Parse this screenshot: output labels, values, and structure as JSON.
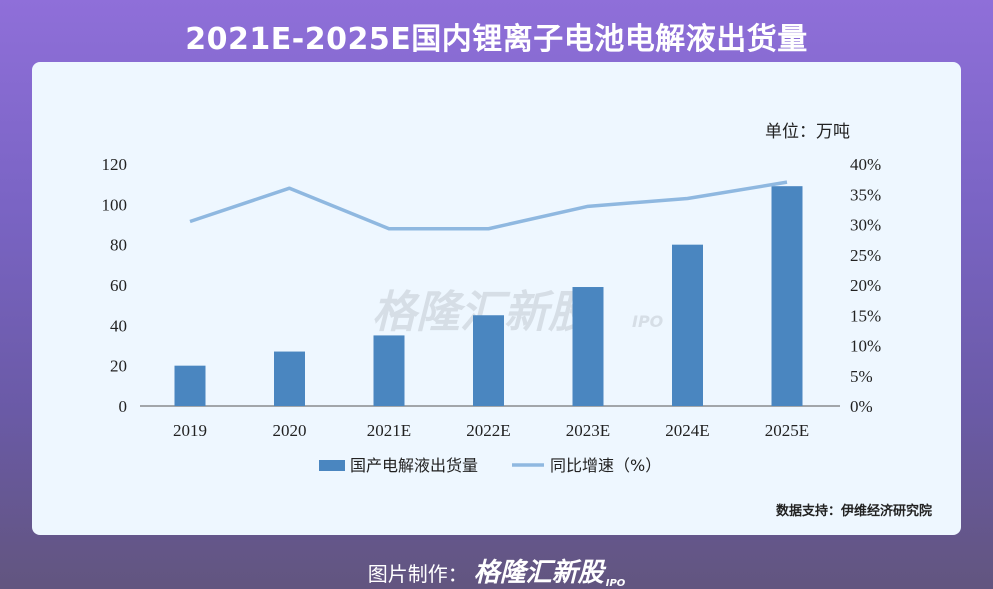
{
  "header": {
    "title": "2021E-2025E国内锂离子电池电解液出货量"
  },
  "chart_data": {
    "type": "bar",
    "unit_label": "单位：万吨",
    "categories": [
      "2019",
      "2020",
      "2021E",
      "2022E",
      "2023E",
      "2024E",
      "2025E"
    ],
    "series": [
      {
        "name": "国产电解液出货量",
        "type": "bar",
        "axis": "left",
        "color": "#4a86c0",
        "values": [
          20,
          27,
          35,
          45,
          59,
          80,
          109
        ]
      },
      {
        "name": "同比增速（%）",
        "type": "line",
        "axis": "right",
        "color": "#8fb8e0",
        "values": [
          30.5,
          36,
          29.3,
          29.3,
          33,
          34.3,
          37
        ]
      }
    ],
    "y_left": {
      "min": 0,
      "max": 120,
      "ticks": [
        "0",
        "20",
        "40",
        "60",
        "80",
        "100",
        "120"
      ]
    },
    "y_right": {
      "min": 0,
      "max": 40,
      "ticks": [
        "0%",
        "5%",
        "10%",
        "15%",
        "20%",
        "25%",
        "30%",
        "35%",
        "40%"
      ]
    },
    "grid": false,
    "legend": "bottom-center",
    "source": "数据支持：伊维经济研究院"
  },
  "watermark": {
    "text": "格隆汇新股",
    "sub": "IPO"
  },
  "footer": {
    "label": "图片制作：",
    "brand": "格隆汇新股",
    "brand_sub": "IPO"
  }
}
